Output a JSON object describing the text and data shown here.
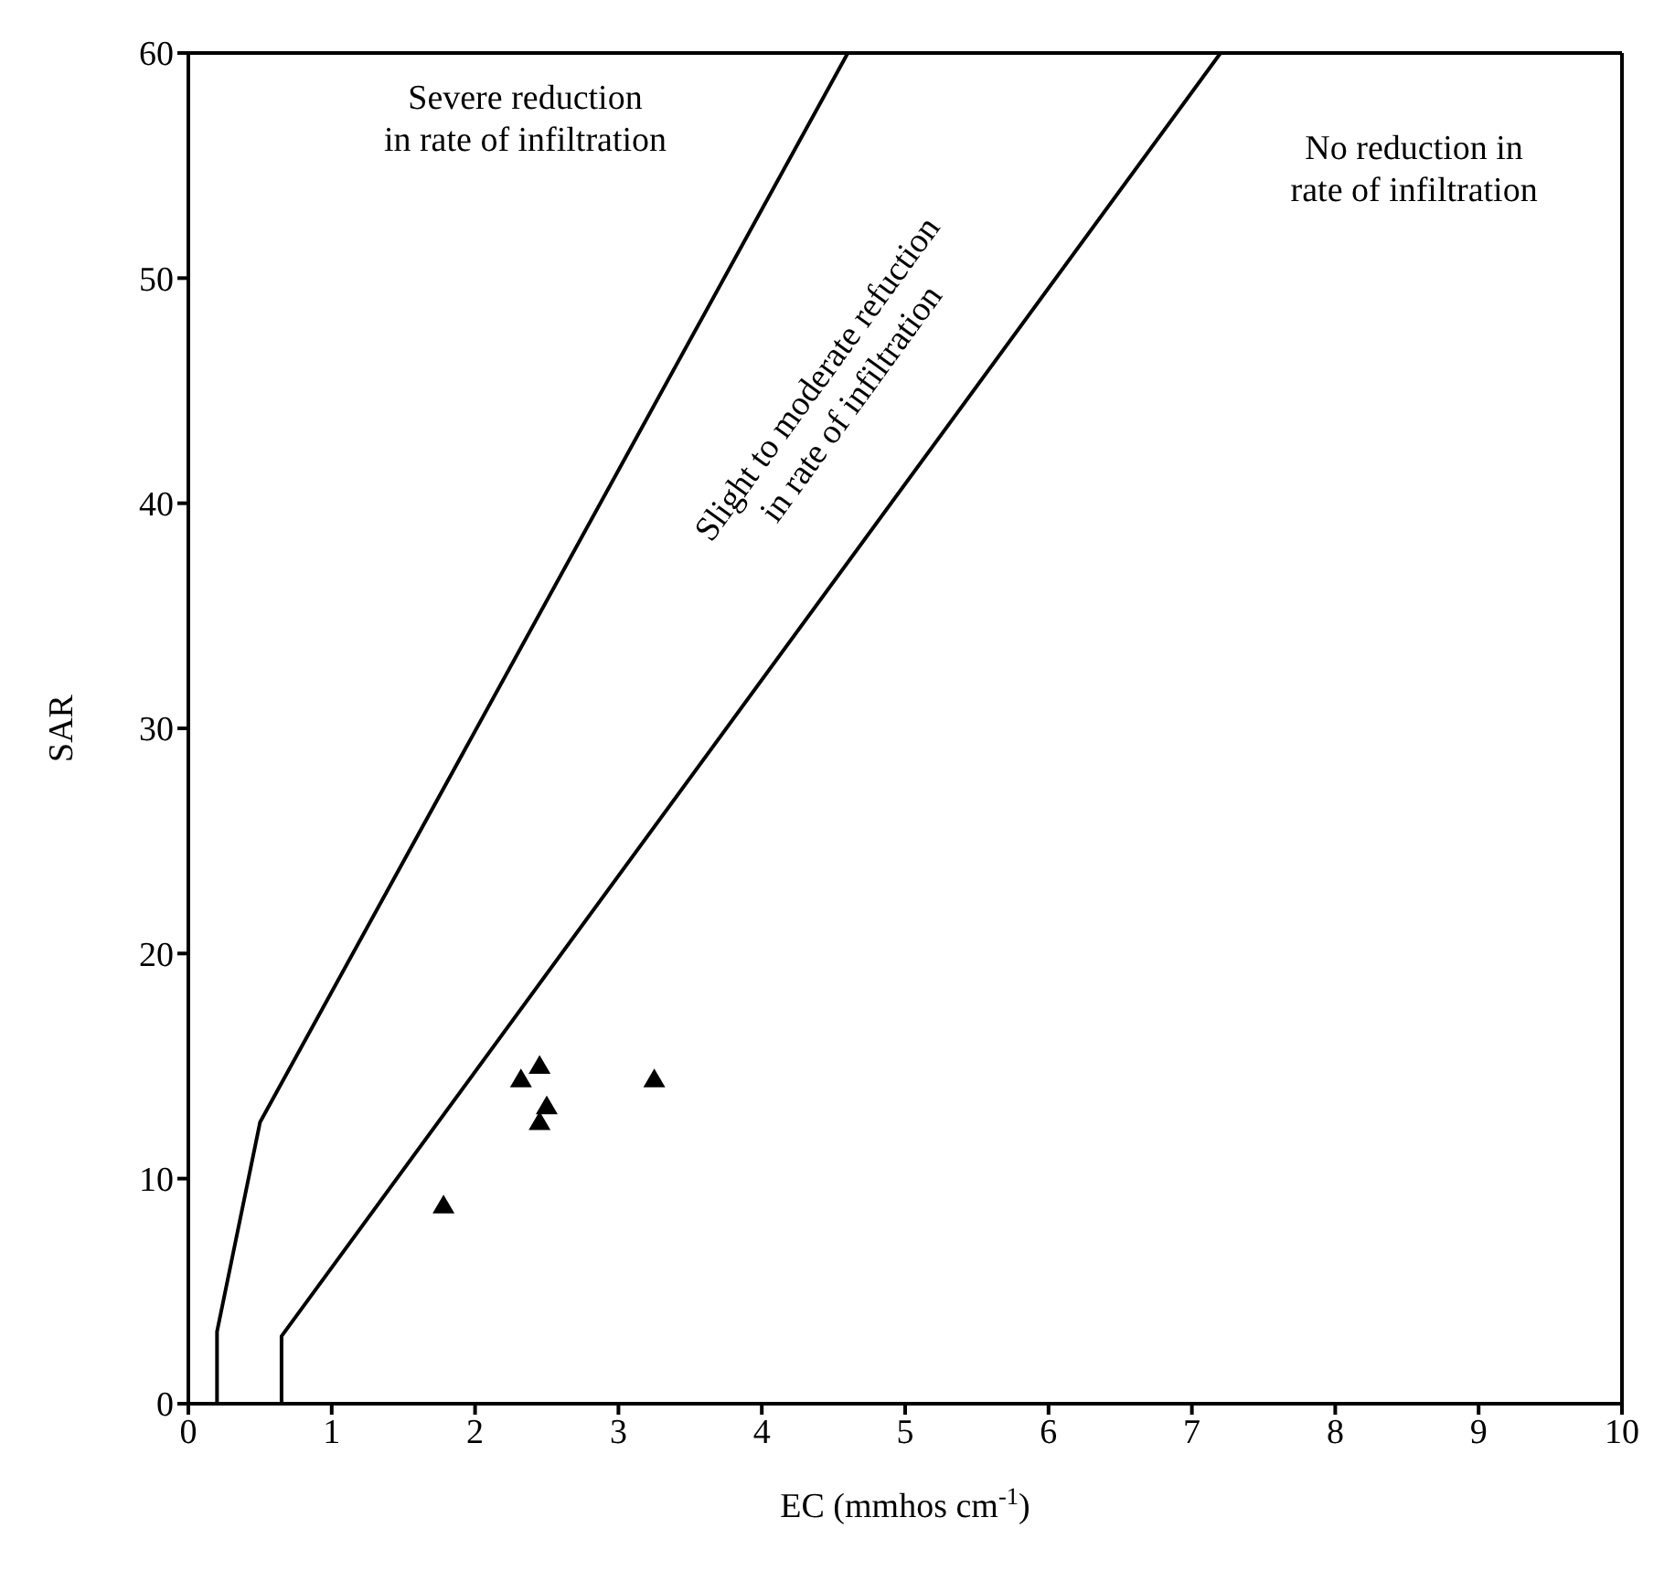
{
  "chart_data": {
    "type": "scatter",
    "xlabel": "EC (mmhos cm$^{-1}$)",
    "ylabel": "SAR",
    "xlim": [
      0,
      10
    ],
    "xticks": [
      0,
      1,
      2,
      3,
      4,
      5,
      6,
      7,
      8,
      9,
      10
    ],
    "ylim": [
      0,
      60
    ],
    "yticks": [
      0,
      10,
      20,
      30,
      40,
      50,
      60
    ],
    "series": [
      {
        "color": "#000000",
        "marker": "triangle",
        "x": [
          1.78,
          2.32,
          2.45,
          2.5,
          2.45,
          3.25
        ],
        "values": [
          8.8,
          14.4,
          15.0,
          13.2,
          12.5,
          14.4
        ]
      },
      {
        "type": "line",
        "color": "#000000",
        "marker": "none",
        "x": [
          0.2,
          0.2,
          0.5,
          4.6
        ],
        "values": [
          0,
          3.2,
          12.5,
          60
        ]
      },
      {
        "type": "line",
        "color": "#000000",
        "marker": "none",
        "x": [
          0.65,
          0.65,
          7.2
        ],
        "values": [
          0,
          3,
          60
        ]
      }
    ],
    "annotations": [
      "Severe reduction\nin rate of infiltration",
      "Slight to moderate refuction\nin rate of infiltration",
      "No reduction in\nrate of infiltration"
    ]
  }
}
